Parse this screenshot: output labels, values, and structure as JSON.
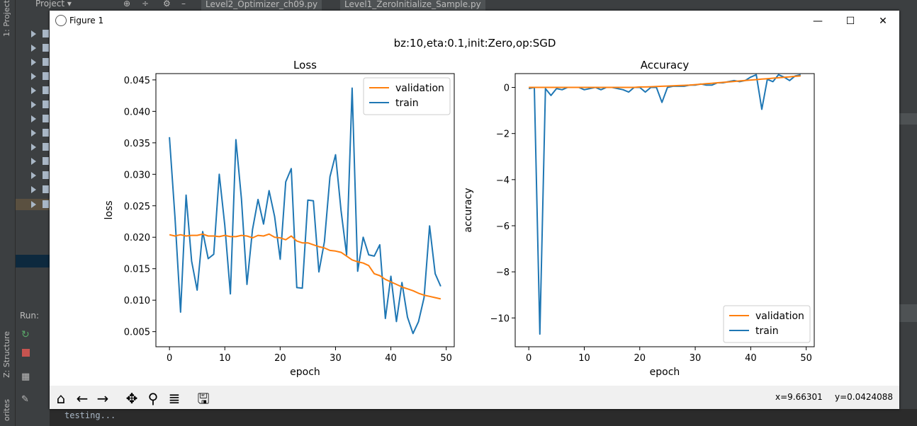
{
  "window": {
    "title": "Figure 1",
    "minimize": "—",
    "maximize": "☐",
    "close": "✕"
  },
  "ide": {
    "project_label": "Project ▾",
    "tabs": [
      "Level2_Optimizer_ch09.py",
      "Level1_ZeroInitialize_Sample.py"
    ],
    "side_labels": {
      "project": "1: Project",
      "structure": "Z: Structure",
      "favorites": "orites"
    },
    "run_label": "Run:",
    "console_text": "testing..."
  },
  "figure": {
    "suptitle": "bz:10,eta:0.1,init:Zero,op:SGD"
  },
  "toolbar": {
    "buttons": [
      "home-icon",
      "back-arrow-icon",
      "forward-arrow-icon",
      "pan-icon",
      "zoom-icon",
      "configure-subplots-icon",
      "save-icon"
    ]
  },
  "status": {
    "x": "x=9.66301",
    "y": "y=0.0424088"
  },
  "colors": {
    "train": "#1f77b4",
    "validation": "#ff7f0e"
  },
  "chart_data": [
    {
      "type": "line",
      "title": "Loss",
      "xlabel": "epoch",
      "ylabel": "loss",
      "xlim": [
        -2.45,
        51.45
      ],
      "ylim": [
        0.0026,
        0.046
      ],
      "xticks": [
        0,
        10,
        20,
        30,
        40,
        50
      ],
      "yticks": [
        0.005,
        0.01,
        0.015,
        0.02,
        0.025,
        0.03,
        0.035,
        0.04,
        0.045
      ],
      "ytick_labels": [
        "0.005",
        "0.010",
        "0.015",
        "0.020",
        "0.025",
        "0.030",
        "0.035",
        "0.040",
        "0.045"
      ],
      "legend": {
        "loc": "upper right",
        "entries": [
          "validation",
          "train"
        ]
      },
      "series": [
        {
          "name": "validation",
          "color": "#ff7f0e",
          "x": [
            0,
            1,
            2,
            3,
            4,
            5,
            6,
            7,
            8,
            9,
            10,
            11,
            12,
            13,
            14,
            15,
            16,
            17,
            18,
            19,
            20,
            21,
            22,
            23,
            24,
            25,
            26,
            27,
            28,
            29,
            30,
            31,
            32,
            33,
            34,
            35,
            36,
            37,
            38,
            39,
            40,
            41,
            42,
            43,
            44,
            45,
            46,
            47,
            48,
            49
          ],
          "values": [
            0.0204,
            0.0202,
            0.0204,
            0.0202,
            0.0203,
            0.0203,
            0.0205,
            0.0202,
            0.0202,
            0.0201,
            0.0203,
            0.0201,
            0.0201,
            0.0203,
            0.0202,
            0.0199,
            0.0203,
            0.0202,
            0.0205,
            0.02,
            0.0199,
            0.0196,
            0.0202,
            0.0194,
            0.0191,
            0.0191,
            0.0188,
            0.0185,
            0.0183,
            0.0179,
            0.0178,
            0.0176,
            0.017,
            0.0164,
            0.0161,
            0.0159,
            0.0155,
            0.0142,
            0.0139,
            0.0133,
            0.0129,
            0.0125,
            0.0121,
            0.0118,
            0.0115,
            0.0111,
            0.0108,
            0.0106,
            0.0104,
            0.0102
          ]
        },
        {
          "name": "train",
          "color": "#1f77b4",
          "x": [
            0,
            1,
            2,
            3,
            4,
            5,
            6,
            7,
            8,
            9,
            10,
            11,
            12,
            13,
            14,
            15,
            16,
            17,
            18,
            19,
            20,
            21,
            22,
            23,
            24,
            25,
            26,
            27,
            28,
            29,
            30,
            31,
            32,
            33,
            34,
            35,
            36,
            37,
            38,
            39,
            40,
            41,
            42,
            43,
            44,
            45,
            46,
            47,
            48,
            49
          ],
          "values": [
            0.0359,
            0.0232,
            0.0081,
            0.0267,
            0.0162,
            0.0116,
            0.0209,
            0.0166,
            0.0173,
            0.03,
            0.0219,
            0.011,
            0.0355,
            0.0261,
            0.0125,
            0.0212,
            0.026,
            0.0221,
            0.0274,
            0.0233,
            0.0165,
            0.0288,
            0.0309,
            0.012,
            0.0119,
            0.0259,
            0.0258,
            0.0145,
            0.0193,
            0.0296,
            0.0331,
            0.0242,
            0.0172,
            0.0437,
            0.0146,
            0.02,
            0.0172,
            0.017,
            0.0188,
            0.0071,
            0.0138,
            0.0066,
            0.0128,
            0.0073,
            0.0047,
            0.0066,
            0.0104,
            0.0218,
            0.0142,
            0.0122
          ]
        }
      ]
    },
    {
      "type": "line",
      "title": "Accuracy",
      "xlabel": "epoch",
      "ylabel": "accuracy",
      "xlim": [
        -2.45,
        51.45
      ],
      "ylim": [
        -11.25,
        0.6
      ],
      "xticks": [
        0,
        10,
        20,
        30,
        40,
        50
      ],
      "yticks": [
        -10,
        -8,
        -6,
        -4,
        -2,
        0
      ],
      "ytick_labels": [
        "−10",
        "−8",
        "−6",
        "−4",
        "−2",
        "0"
      ],
      "legend": {
        "loc": "lower right",
        "entries": [
          "validation",
          "train"
        ]
      },
      "series": [
        {
          "name": "validation",
          "color": "#ff7f0e",
          "x": [
            0,
            1,
            2,
            3,
            4,
            5,
            6,
            7,
            8,
            9,
            10,
            11,
            12,
            13,
            14,
            15,
            16,
            17,
            18,
            19,
            20,
            21,
            22,
            23,
            24,
            25,
            26,
            27,
            28,
            29,
            30,
            31,
            32,
            33,
            34,
            35,
            36,
            37,
            38,
            39,
            40,
            41,
            42,
            43,
            44,
            45,
            46,
            47,
            48,
            49
          ],
          "values": [
            0.0,
            0.0,
            0.0,
            0.0,
            0.0,
            0.0,
            0.0,
            0.0,
            0.0,
            0.0,
            0.0,
            0.0,
            0.0,
            0.0,
            0.0,
            0.0,
            0.0,
            0.0,
            0.0,
            0.0,
            0.02,
            0.02,
            0.03,
            0.04,
            0.05,
            0.06,
            0.07,
            0.08,
            0.09,
            0.1,
            0.12,
            0.14,
            0.16,
            0.18,
            0.2,
            0.22,
            0.24,
            0.26,
            0.28,
            0.3,
            0.32,
            0.34,
            0.36,
            0.38,
            0.4,
            0.42,
            0.44,
            0.46,
            0.48,
            0.5
          ]
        },
        {
          "name": "train",
          "color": "#1f77b4",
          "x": [
            0,
            1,
            2,
            3,
            4,
            5,
            6,
            7,
            8,
            9,
            10,
            11,
            12,
            13,
            14,
            15,
            16,
            17,
            18,
            19,
            20,
            21,
            22,
            23,
            24,
            25,
            26,
            27,
            28,
            29,
            30,
            31,
            32,
            33,
            34,
            35,
            36,
            37,
            38,
            39,
            40,
            41,
            42,
            43,
            44,
            45,
            46,
            47,
            48,
            49
          ],
          "values": [
            -0.05,
            0.0,
            -10.7,
            -0.05,
            -0.35,
            -0.05,
            -0.1,
            0.0,
            0.0,
            0.0,
            -0.1,
            -0.05,
            0.0,
            -0.1,
            0.0,
            0.0,
            -0.05,
            -0.1,
            -0.2,
            0.0,
            0.0,
            -0.2,
            0.0,
            0.0,
            -0.65,
            0.0,
            0.05,
            0.05,
            0.05,
            0.1,
            0.1,
            0.15,
            0.1,
            0.1,
            0.2,
            0.2,
            0.25,
            0.3,
            0.25,
            0.3,
            0.45,
            0.55,
            -0.95,
            0.35,
            0.25,
            0.55,
            0.45,
            0.3,
            0.5,
            0.55
          ]
        }
      ]
    }
  ]
}
